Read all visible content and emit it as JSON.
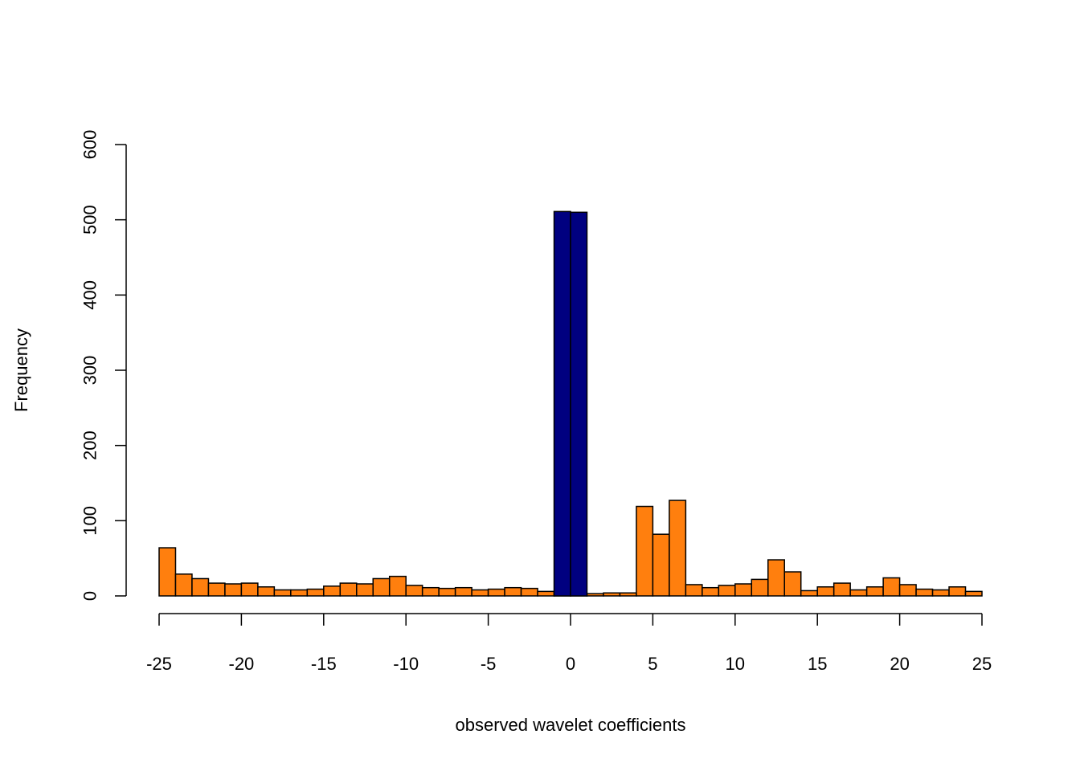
{
  "chart_data": {
    "type": "bar",
    "title": "",
    "xlabel": "observed wavelet coefficients",
    "ylabel": "Frequency",
    "xlim": [
      -25,
      25
    ],
    "ylim": [
      0,
      600
    ],
    "x_ticks": [
      -25,
      -20,
      -15,
      -10,
      -5,
      0,
      5,
      10,
      15,
      20,
      25
    ],
    "y_ticks": [
      0,
      100,
      200,
      300,
      400,
      500,
      600
    ],
    "bin_width": 1,
    "grid": false,
    "legend": "none",
    "series": [
      {
        "color": "#ff7f0e",
        "bins": [
          [
            -25,
            64
          ],
          [
            -24,
            29
          ],
          [
            -23,
            23
          ],
          [
            -22,
            17
          ],
          [
            -21,
            16
          ],
          [
            -20,
            17
          ],
          [
            -19,
            12
          ],
          [
            -18,
            8
          ],
          [
            -17,
            8
          ],
          [
            -16,
            9
          ],
          [
            -15,
            13
          ],
          [
            -14,
            17
          ],
          [
            -13,
            16
          ],
          [
            -12,
            23
          ],
          [
            -11,
            26
          ],
          [
            -10,
            14
          ],
          [
            -9,
            11
          ],
          [
            -8,
            10
          ],
          [
            -7,
            11
          ],
          [
            -6,
            8
          ],
          [
            -5,
            9
          ],
          [
            -4,
            11
          ],
          [
            -3,
            10
          ],
          [
            -2,
            6
          ],
          [
            -1,
            4
          ],
          [
            0,
            2
          ],
          [
            1,
            3
          ],
          [
            2,
            4
          ],
          [
            3,
            4
          ],
          [
            4,
            119
          ],
          [
            5,
            82
          ],
          [
            6,
            127
          ],
          [
            7,
            15
          ],
          [
            8,
            11
          ],
          [
            9,
            14
          ],
          [
            10,
            16
          ],
          [
            11,
            22
          ],
          [
            12,
            48
          ],
          [
            13,
            32
          ],
          [
            14,
            7
          ],
          [
            15,
            12
          ],
          [
            16,
            17
          ],
          [
            17,
            8
          ],
          [
            18,
            12
          ],
          [
            19,
            24
          ],
          [
            20,
            15
          ],
          [
            21,
            9
          ],
          [
            22,
            8
          ],
          [
            23,
            12
          ],
          [
            24,
            6
          ]
        ]
      },
      {
        "color": "#000080",
        "bins": [
          [
            -1,
            511
          ],
          [
            0,
            510
          ]
        ]
      }
    ]
  }
}
